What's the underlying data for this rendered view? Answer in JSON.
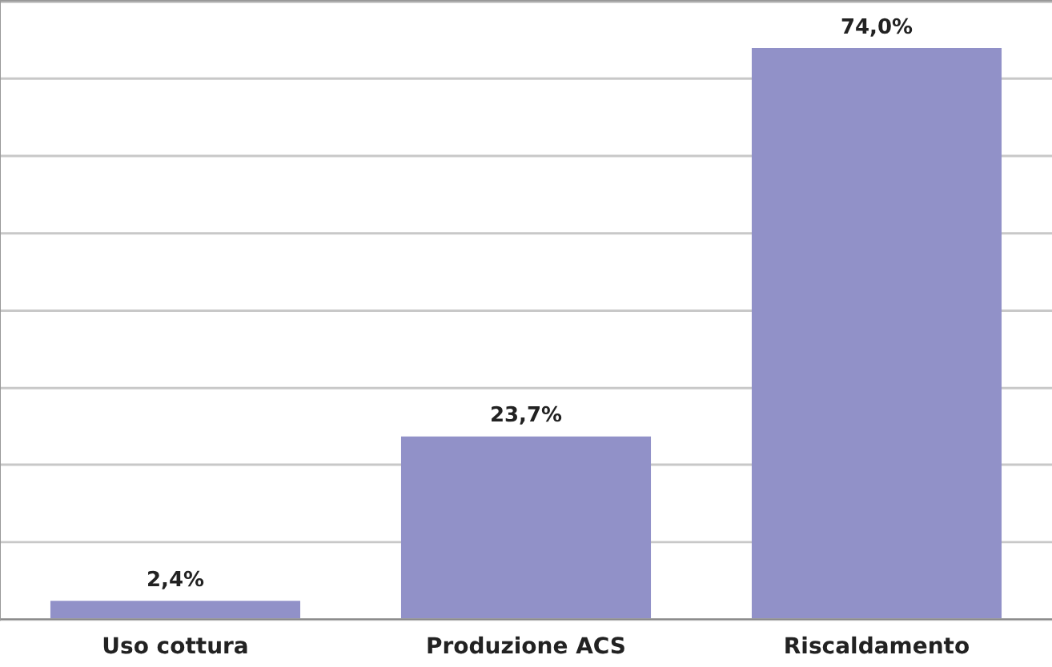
{
  "chart_data": {
    "type": "bar",
    "categories": [
      "Uso cottura",
      "Produzione ACS",
      "Riscaldamento"
    ],
    "values": [
      2.4,
      23.7,
      74.0
    ],
    "value_labels": [
      "2,4%",
      "23,7%",
      "74,0%"
    ],
    "color": "#9191c8",
    "grid": "y",
    "tick_labels": "x",
    "legend": false
  }
}
